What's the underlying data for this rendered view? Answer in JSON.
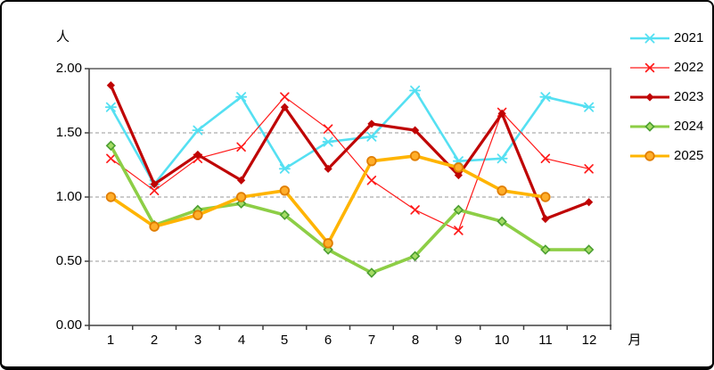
{
  "chart_data": {
    "type": "line",
    "y_unit": "人",
    "x_unit": "月",
    "categories": [
      "1",
      "2",
      "3",
      "4",
      "5",
      "6",
      "7",
      "8",
      "9",
      "10",
      "11",
      "12"
    ],
    "ylim": [
      0,
      2
    ],
    "yticks": [
      2.0,
      1.5,
      1.0,
      0.5,
      0.0
    ],
    "ytick_labels": [
      "2.00",
      "1.50",
      "1.00",
      "0.50",
      "0.00"
    ],
    "gridlines": [
      0.5,
      1.0,
      1.5
    ],
    "grid": true,
    "legend_position": "right",
    "axis_color": "#404040",
    "frame_color": "#848484",
    "gridline_color": "#9a9a9a",
    "series": [
      {
        "name": "2021",
        "color": "#55e0f2",
        "marker": "star",
        "line_width": 2.6,
        "values": [
          1.7,
          1.1,
          1.52,
          1.78,
          1.22,
          1.43,
          1.47,
          1.83,
          1.28,
          1.3,
          1.78,
          1.7
        ]
      },
      {
        "name": "2022",
        "color": "#ff1a1a",
        "marker": "x",
        "line_width": 1.2,
        "values": [
          1.3,
          1.05,
          1.3,
          1.39,
          1.78,
          1.53,
          1.13,
          0.9,
          0.74,
          1.66,
          1.3,
          1.22
        ]
      },
      {
        "name": "2023",
        "color": "#bf0404",
        "marker": "diamond_filled",
        "line_width": 3.2,
        "values": [
          1.87,
          1.1,
          1.33,
          1.13,
          1.7,
          1.22,
          1.57,
          1.52,
          1.17,
          1.65,
          0.83,
          0.96
        ]
      },
      {
        "name": "2024",
        "color": "#8dce46",
        "marker": "diamond",
        "marker_fill": "#a5dc64",
        "marker_stroke": "#4b9e32",
        "line_width": 3.6,
        "values": [
          1.4,
          0.78,
          0.9,
          0.95,
          0.86,
          0.59,
          0.41,
          0.54,
          0.9,
          0.81,
          0.59,
          0.59
        ]
      },
      {
        "name": "2025",
        "color": "#ffb400",
        "marker": "circle",
        "marker_fill": "#ffae2b",
        "marker_stroke": "#e07d00",
        "line_width": 3.6,
        "values": [
          1.0,
          0.77,
          0.86,
          1.0,
          1.05,
          0.64,
          1.28,
          1.32,
          1.23,
          1.05,
          1.0,
          null
        ]
      }
    ]
  }
}
